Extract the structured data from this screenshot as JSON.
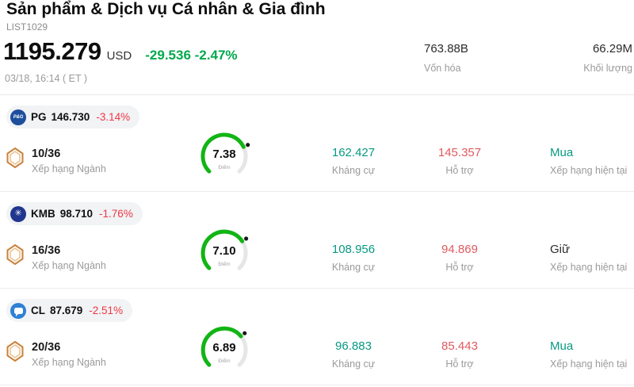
{
  "header": {
    "title": "Sản phẩm & Dịch vụ Cá nhân & Gia đình",
    "list_id": "LIST1029",
    "price": "1195.279",
    "currency": "USD",
    "change": "-29.536 -2.47%",
    "datetime": "03/18, 16:14 ( ET )",
    "market_cap": {
      "value": "763.88B",
      "label": "Vốn hóa"
    },
    "volume": {
      "value": "66.29M",
      "label": "Khối lượng"
    }
  },
  "labels": {
    "score_unit": "Điểm",
    "resistance": "Kháng cự",
    "support": "Hỗ trợ",
    "current_rating": "Xếp hạng hiện tại",
    "industry_rank": "Xếp hạng Ngành"
  },
  "colors": {
    "positive_green": "#00a94c",
    "negative_red": "#f23645",
    "resistance_teal": "#089981",
    "support_red": "#e05a5f",
    "gauge_green": "#11b514"
  },
  "stocks": [
    {
      "ticker": "PG",
      "price": "146.730",
      "change": "-3.14%",
      "industry_rank": "10/36",
      "score": "7.38",
      "score_value": 7.38,
      "resistance": "162.427",
      "support": "145.357",
      "rating": "Mua",
      "rating_type": "buy",
      "logo_text": "P&G"
    },
    {
      "ticker": "KMB",
      "price": "98.710",
      "change": "-1.76%",
      "industry_rank": "16/36",
      "score": "7.10",
      "score_value": 7.1,
      "resistance": "108.956",
      "support": "94.869",
      "rating": "Giữ",
      "rating_type": "hold",
      "logo_text": "✳"
    },
    {
      "ticker": "CL",
      "price": "87.679",
      "change": "-2.51%",
      "industry_rank": "20/36",
      "score": "6.89",
      "score_value": 6.89,
      "resistance": "96.883",
      "support": "85.443",
      "rating": "Mua",
      "rating_type": "buy",
      "logo_text": ""
    }
  ]
}
